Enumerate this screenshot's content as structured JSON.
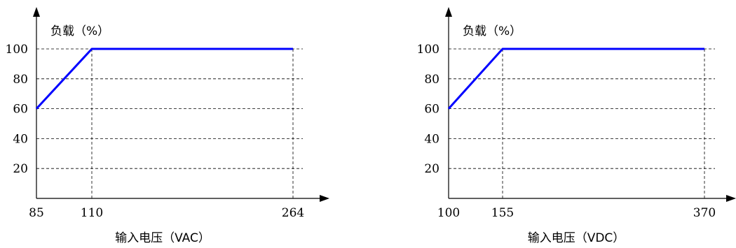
{
  "chart_data": [
    {
      "type": "line",
      "ylabel": "负载（%）",
      "xlabel": "输入电压（VAC）",
      "x_ticks": [
        "85",
        "110",
        "264"
      ],
      "y_ticks": [
        "20",
        "40",
        "60",
        "80",
        "100"
      ],
      "ylim": [
        0,
        100
      ],
      "grid": "dashed",
      "series": [
        {
          "x": [
            85,
            110,
            264
          ],
          "y": [
            60,
            100,
            100
          ],
          "color": "#0000ff"
        }
      ]
    },
    {
      "type": "line",
      "ylabel": "负载（%）",
      "xlabel": "输入电压（VDC）",
      "x_ticks": [
        "100",
        "155",
        "370"
      ],
      "y_ticks": [
        "20",
        "40",
        "60",
        "80",
        "100"
      ],
      "ylim": [
        0,
        100
      ],
      "grid": "dashed",
      "series": [
        {
          "x": [
            100,
            155,
            370
          ],
          "y": [
            60,
            100,
            100
          ],
          "color": "#0000ff"
        }
      ]
    }
  ]
}
